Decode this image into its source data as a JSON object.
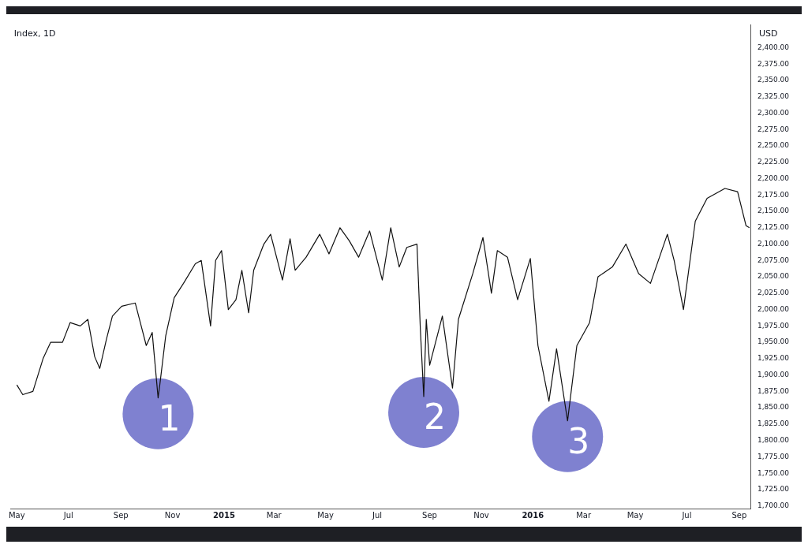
{
  "chart_data": {
    "type": "line",
    "title": "Index, 1D",
    "ylabel": "USD",
    "x": [
      "2014-05-01",
      "2014-05-08",
      "2014-05-20",
      "2014-06-01",
      "2014-06-10",
      "2014-06-24",
      "2014-07-03",
      "2014-07-15",
      "2014-07-24",
      "2014-08-01",
      "2014-08-07",
      "2014-08-15",
      "2014-08-22",
      "2014-09-02",
      "2014-09-18",
      "2014-09-25",
      "2014-10-01",
      "2014-10-08",
      "2014-10-15",
      "2014-10-17",
      "2014-10-24",
      "2014-11-03",
      "2014-11-14",
      "2014-11-28",
      "2014-12-05",
      "2014-12-16",
      "2014-12-22",
      "2014-12-29",
      "2015-01-06",
      "2015-01-15",
      "2015-01-22",
      "2015-01-30",
      "2015-02-05",
      "2015-02-17",
      "2015-02-25",
      "2015-03-06",
      "2015-03-11",
      "2015-03-20",
      "2015-03-26",
      "2015-04-08",
      "2015-04-24",
      "2015-05-05",
      "2015-05-18",
      "2015-05-29",
      "2015-06-09",
      "2015-06-22",
      "2015-07-07",
      "2015-07-17",
      "2015-07-27",
      "2015-08-05",
      "2015-08-17",
      "2015-08-21",
      "2015-08-25",
      "2015-08-28",
      "2015-09-01",
      "2015-09-16",
      "2015-09-28",
      "2015-10-05",
      "2015-10-22",
      "2015-11-03",
      "2015-11-13",
      "2015-11-20",
      "2015-12-02",
      "2015-12-14",
      "2015-12-29",
      "2016-01-07",
      "2016-01-20",
      "2016-01-29",
      "2016-02-11",
      "2016-02-22",
      "2016-03-08",
      "2016-03-18",
      "2016-04-04",
      "2016-04-20",
      "2016-05-05",
      "2016-05-19",
      "2016-06-08",
      "2016-06-16",
      "2016-06-27",
      "2016-07-11",
      "2016-07-25",
      "2016-08-15",
      "2016-08-30",
      "2016-09-09",
      "2016-09-13"
    ],
    "series": [
      {
        "color": "#111111",
        "values": [
          1885,
          1870,
          1875,
          1925,
          1950,
          1950,
          1980,
          1975,
          1985,
          1928,
          1910,
          1955,
          1990,
          2005,
          2010,
          1975,
          1945,
          1965,
          1865,
          1885,
          1960,
          2018,
          2040,
          2070,
          2075,
          1975,
          2075,
          2090,
          2000,
          2015,
          2060,
          1995,
          2060,
          2100,
          2115,
          2070,
          2045,
          2108,
          2060,
          2080,
          2115,
          2085,
          2125,
          2105,
          2080,
          2120,
          2045,
          2125,
          2065,
          2095,
          2100,
          1970,
          1867,
          1985,
          1915,
          1990,
          1880,
          1985,
          2055,
          2110,
          2025,
          2090,
          2080,
          2015,
          2078,
          1945,
          1860,
          1940,
          1830,
          1945,
          1980,
          2050,
          2065,
          2100,
          2055,
          2040,
          2115,
          2075,
          2000,
          2135,
          2170,
          2185,
          2180,
          2128,
          2125
        ]
      }
    ],
    "xlim": [
      "2014-04-24",
      "2016-09-15"
    ],
    "xticks": [
      {
        "value": "2014-05-01",
        "label": "May"
      },
      {
        "value": "2014-07-01",
        "label": "Jul"
      },
      {
        "value": "2014-09-01",
        "label": "Sep"
      },
      {
        "value": "2014-11-01",
        "label": "Nov"
      },
      {
        "value": "2015-01-01",
        "label": "2015"
      },
      {
        "value": "2015-03-01",
        "label": "Mar"
      },
      {
        "value": "2015-05-01",
        "label": "May"
      },
      {
        "value": "2015-07-01",
        "label": "Jul"
      },
      {
        "value": "2015-09-01",
        "label": "Sep"
      },
      {
        "value": "2015-11-01",
        "label": "Nov"
      },
      {
        "value": "2016-01-01",
        "label": "2016"
      },
      {
        "value": "2016-03-01",
        "label": "Mar"
      },
      {
        "value": "2016-05-01",
        "label": "May"
      },
      {
        "value": "2016-07-01",
        "label": "Jul"
      },
      {
        "value": "2016-09-01",
        "label": "Sep"
      }
    ],
    "ylim": [
      1696,
      2435
    ],
    "yticks": [
      {
        "value": 1700,
        "label": "1,700.00"
      },
      {
        "value": 1725,
        "label": "1,725.00"
      },
      {
        "value": 1750,
        "label": "1,750.00"
      },
      {
        "value": 1775,
        "label": "1,775.00"
      },
      {
        "value": 1800,
        "label": "1,800.00"
      },
      {
        "value": 1825,
        "label": "1,825.00"
      },
      {
        "value": 1850,
        "label": "1,850.00"
      },
      {
        "value": 1875,
        "label": "1,875.00"
      },
      {
        "value": 1900,
        "label": "1,900.00"
      },
      {
        "value": 1925,
        "label": "1,925.00"
      },
      {
        "value": 1950,
        "label": "1,950.00"
      },
      {
        "value": 1975,
        "label": "1,975.00"
      },
      {
        "value": 2000,
        "label": "2,000.00"
      },
      {
        "value": 2025,
        "label": "2,025.00"
      },
      {
        "value": 2050,
        "label": "2,050.00"
      },
      {
        "value": 2075,
        "label": "2,075.00"
      },
      {
        "value": 2100,
        "label": "2,100.00"
      },
      {
        "value": 2125,
        "label": "2,125.00"
      },
      {
        "value": 2150,
        "label": "2,150.00"
      },
      {
        "value": 2175,
        "label": "2,175.00"
      },
      {
        "value": 2200,
        "label": "2,200.00"
      },
      {
        "value": 2225,
        "label": "2,225.00"
      },
      {
        "value": 2250,
        "label": "2,250.00"
      },
      {
        "value": 2275,
        "label": "2,275.00"
      },
      {
        "value": 2300,
        "label": "2,300.00"
      },
      {
        "value": 2325,
        "label": "2,325.00"
      },
      {
        "value": 2350,
        "label": "2,350.00"
      },
      {
        "value": 2375,
        "label": "2,375.00"
      },
      {
        "value": 2400,
        "label": "2,400.00"
      }
    ],
    "annotations": [
      {
        "text": "1",
        "x": "2014-10-15",
        "y": 1865
      },
      {
        "text": "2",
        "x": "2015-08-25",
        "y": 1867
      },
      {
        "text": "3",
        "x": "2016-02-11",
        "y": 1830
      }
    ],
    "grid": false,
    "legend": false,
    "marker": "none",
    "line_style": "solid"
  }
}
